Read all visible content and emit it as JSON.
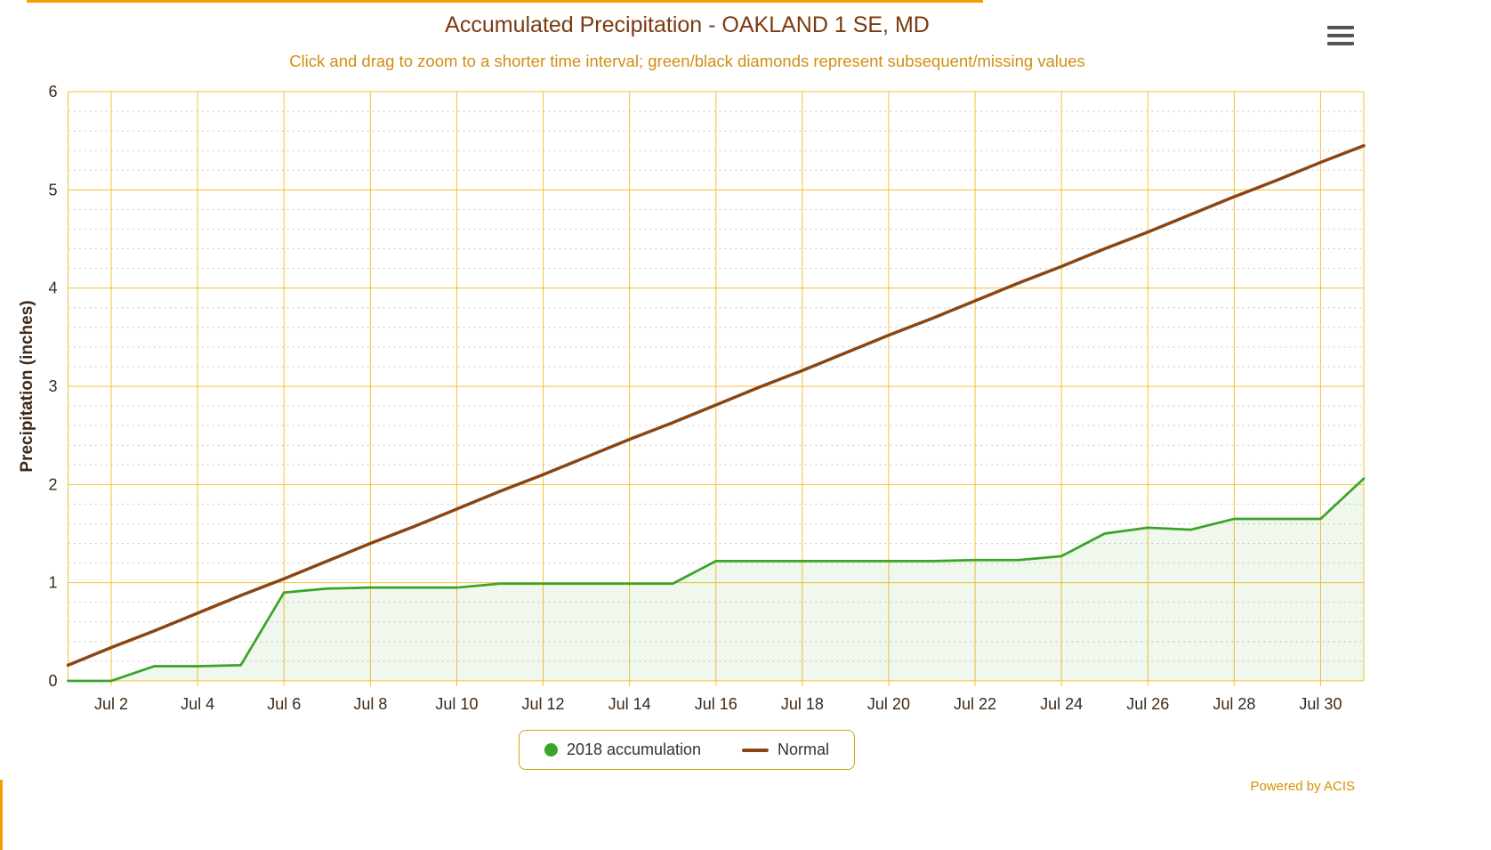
{
  "colors": {
    "accent_bar": "#f59e00",
    "major_grid": "#f3c237",
    "minor_grid": "#c8c8c8",
    "title": "#7b3a10",
    "subtitle": "#d18f13",
    "axis_label": "#3d2817",
    "accumulation_green": "#3aa428",
    "accumulation_fill": "rgba(58,164,40,0.08)",
    "normal_brown": "#8b4513",
    "legend_border": "#d4a017",
    "legend_text": "#333333",
    "credit": "#d78f00",
    "menu_icon": "#555555"
  },
  "menu": {
    "icon": "hamburger-icon"
  },
  "footer": {
    "credit": "Powered by ACIS"
  },
  "chart_data": {
    "type": "area",
    "title": "Accumulated Precipitation - OAKLAND 1 SE, MD",
    "subtitle": "Click and drag to zoom to a shorter time interval; green/black diamonds represent subsequent/missing values",
    "ylabel": "Precipitation (inches)",
    "ylim": [
      0,
      6
    ],
    "y_major_step": 1,
    "y_minor_step": 0.2,
    "grid": true,
    "legend_position": "bottom",
    "dates": [
      "Jul 1",
      "Jul 2",
      "Jul 3",
      "Jul 4",
      "Jul 5",
      "Jul 6",
      "Jul 7",
      "Jul 8",
      "Jul 9",
      "Jul 10",
      "Jul 11",
      "Jul 12",
      "Jul 13",
      "Jul 14",
      "Jul 15",
      "Jul 16",
      "Jul 17",
      "Jul 18",
      "Jul 19",
      "Jul 20",
      "Jul 21",
      "Jul 22",
      "Jul 23",
      "Jul 24",
      "Jul 25",
      "Jul 26",
      "Jul 27",
      "Jul 28",
      "Jul 29",
      "Jul 30",
      "Jul 31"
    ],
    "x_tick_labels": [
      "Jul 2",
      "Jul 4",
      "Jul 6",
      "Jul 8",
      "Jul 10",
      "Jul 12",
      "Jul 14",
      "Jul 16",
      "Jul 18",
      "Jul 20",
      "Jul 22",
      "Jul 24",
      "Jul 26",
      "Jul 28",
      "Jul 30"
    ],
    "series": [
      {
        "name": "2018 accumulation",
        "type": "area",
        "color": "#3aa428",
        "values": [
          0,
          0,
          0.15,
          0.15,
          0.16,
          0.9,
          0.94,
          0.95,
          0.95,
          0.95,
          0.99,
          0.99,
          0.99,
          0.99,
          0.99,
          1.22,
          1.22,
          1.22,
          1.22,
          1.22,
          1.22,
          1.23,
          1.23,
          1.27,
          1.5,
          1.56,
          1.54,
          1.65,
          1.65,
          1.65,
          2.06
        ]
      },
      {
        "name": "Normal",
        "type": "line",
        "color": "#8b4513",
        "values": [
          0.16,
          0.34,
          0.51,
          0.69,
          0.87,
          1.04,
          1.22,
          1.4,
          1.57,
          1.75,
          1.93,
          2.1,
          2.28,
          2.46,
          2.63,
          2.81,
          2.99,
          3.16,
          3.34,
          3.52,
          3.69,
          3.87,
          4.05,
          4.22,
          4.4,
          4.57,
          4.75,
          4.93,
          5.1,
          5.28,
          5.45
        ]
      }
    ]
  }
}
